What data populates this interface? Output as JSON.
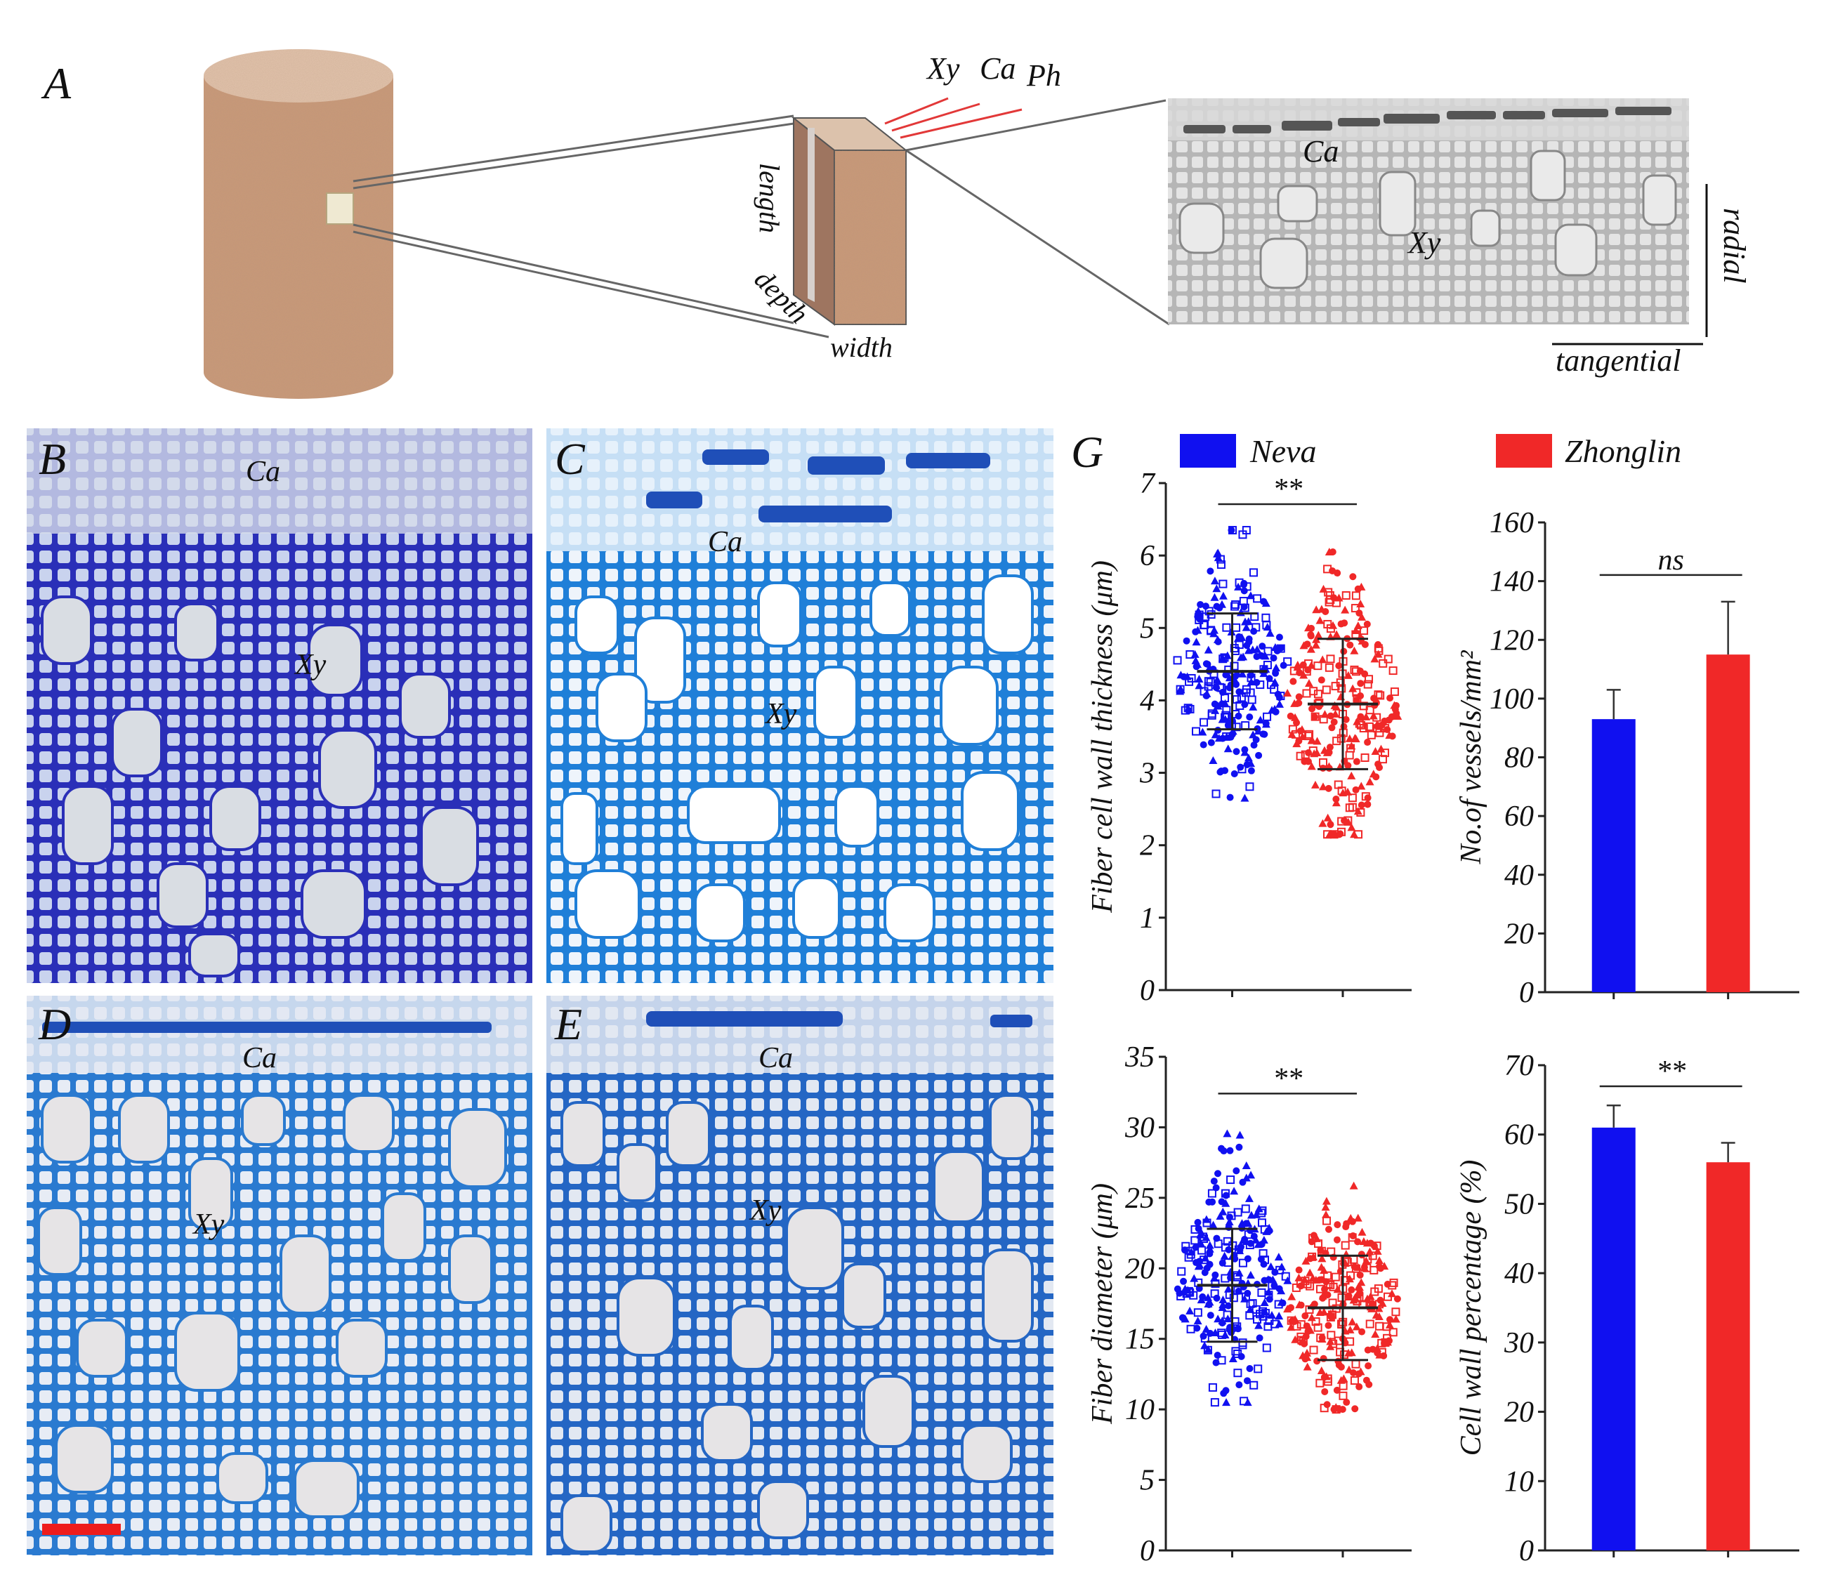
{
  "figure": {
    "panels": {
      "a": "A",
      "b": "B",
      "c": "C",
      "d": "D",
      "e": "E",
      "g": "G"
    },
    "schematic": {
      "length": "length",
      "depth": "depth",
      "width": "width",
      "xy": "Xy",
      "ca": "Ca",
      "ph": "Ph",
      "micro_ca": "Ca",
      "micro_xy": "Xy",
      "radial": "radial",
      "tangential": "tangential"
    },
    "micrographs": {
      "b": {
        "ca": "Ca",
        "xy": "Xy"
      },
      "c": {
        "ca": "Ca",
        "xy": "Xy"
      },
      "d": {
        "ca": "Ca",
        "xy": "Xy"
      },
      "e": {
        "ca": "Ca",
        "xy": "Xy"
      }
    },
    "legend": [
      {
        "name": "Neva",
        "color": "#1010f0"
      },
      {
        "name": "Zhonglin",
        "color": "#f02828"
      }
    ],
    "colors": {
      "wood": "#c99878",
      "wood_top": "#e3c4ad",
      "stain_dark": "#2e3ec4",
      "stain_light": "#3aa4e8",
      "scale_bar": "#ee1c1c"
    }
  },
  "chart_data": [
    {
      "id": "fiber-wall",
      "type": "scatter",
      "ylabel": "Fiber cell wall thickness (μm)",
      "ylim": [
        0,
        7
      ],
      "yticks": [
        "0",
        "1",
        "2",
        "3",
        "4",
        "5",
        "6",
        "7"
      ],
      "significance": "**",
      "series": [
        {
          "name": "Neva",
          "mean": 4.4,
          "sd": 0.8,
          "min": 2.65,
          "max": 6.35
        },
        {
          "name": "Zhonglin",
          "mean": 3.95,
          "sd": 0.9,
          "min": 2.15,
          "max": 6.05
        }
      ]
    },
    {
      "id": "vessels",
      "type": "bar",
      "ylabel": "No.of vessels/mm²",
      "ylim": [
        0,
        160
      ],
      "yticks": [
        "0",
        "20",
        "40",
        "60",
        "80",
        "100",
        "120",
        "140",
        "160"
      ],
      "significance": "ns",
      "series": [
        {
          "name": "Neva",
          "value": 93,
          "error": 10
        },
        {
          "name": "Zhonglin",
          "value": 115,
          "error": 18
        }
      ]
    },
    {
      "id": "fiber-diameter",
      "type": "scatter",
      "ylabel": "Fiber diameter (μm)",
      "ylim": [
        0,
        35
      ],
      "yticks": [
        "0",
        "5",
        "10",
        "15",
        "20",
        "25",
        "30",
        "35"
      ],
      "significance": "**",
      "series": [
        {
          "name": "Neva",
          "mean": 18.8,
          "sd": 4.0,
          "min": 10.5,
          "max": 30.5
        },
        {
          "name": "Zhonglin",
          "mean": 17.2,
          "sd": 3.7,
          "min": 10.0,
          "max": 29.5
        }
      ]
    },
    {
      "id": "cell-wall-pct",
      "type": "bar",
      "ylabel": "Cell wall percentage (%)",
      "ylim": [
        0,
        70
      ],
      "yticks": [
        "0",
        "10",
        "20",
        "30",
        "40",
        "50",
        "60",
        "70"
      ],
      "significance": "**",
      "series": [
        {
          "name": "Neva",
          "value": 61,
          "error": 3.2
        },
        {
          "name": "Zhonglin",
          "value": 56,
          "error": 2.8
        }
      ]
    }
  ]
}
